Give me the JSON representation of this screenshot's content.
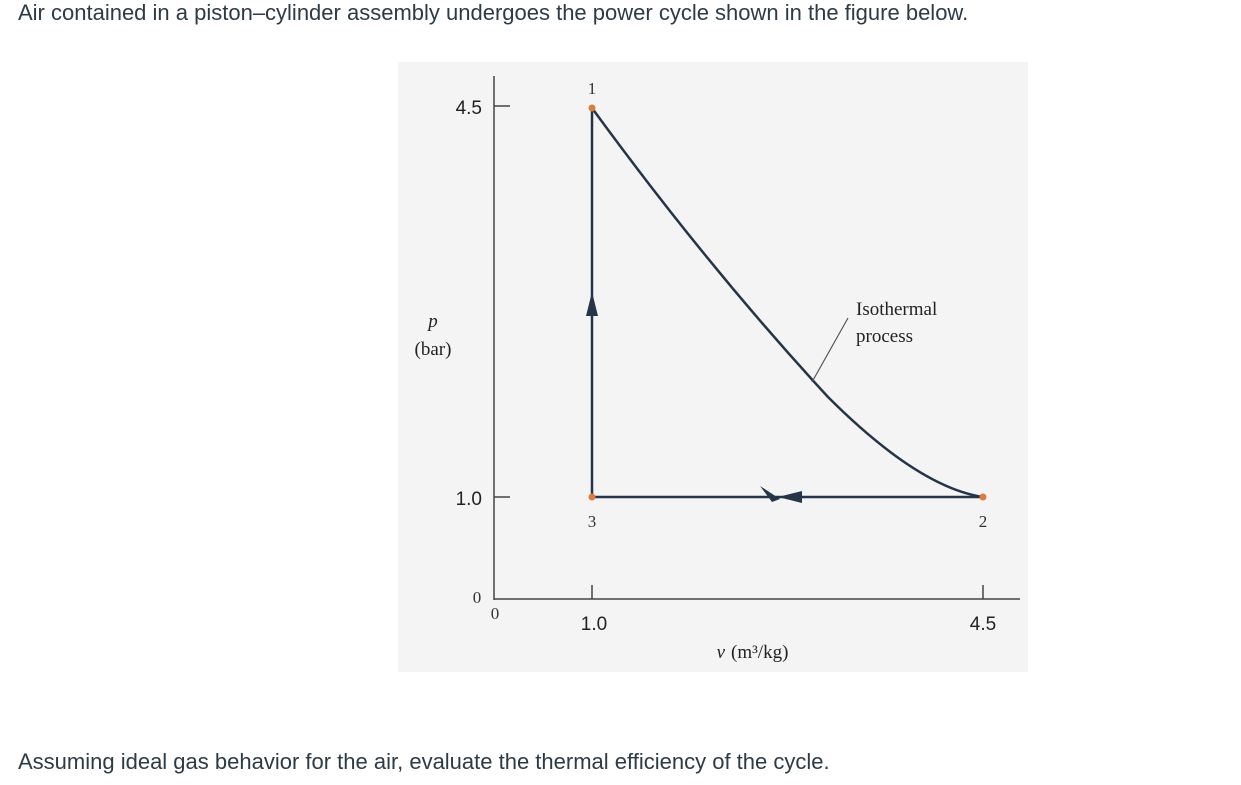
{
  "question": {
    "intro": "Air contained in a piston–cylinder assembly undergoes the power cycle shown in the figure below.",
    "prompt": "Assuming ideal gas behavior for the air, evaluate the thermal efficiency of the cycle."
  },
  "figure": {
    "y_axis_symbol": "p",
    "y_axis_unit": "(bar)",
    "x_axis_symbol": "v",
    "x_axis_unit": "(m³/kg)",
    "y_ticks": [
      "4.5",
      "1.0"
    ],
    "y_origin": "0",
    "x_origin": "0",
    "x_ticks": [
      "1.0",
      "4.5"
    ],
    "states": [
      "1",
      "2",
      "3"
    ],
    "annotation_line1": "Isothermal",
    "annotation_line2": "process",
    "colors": {
      "cycle_line": "#243449",
      "state_point": "#e07b39",
      "background": "#f4f4f4"
    }
  }
}
